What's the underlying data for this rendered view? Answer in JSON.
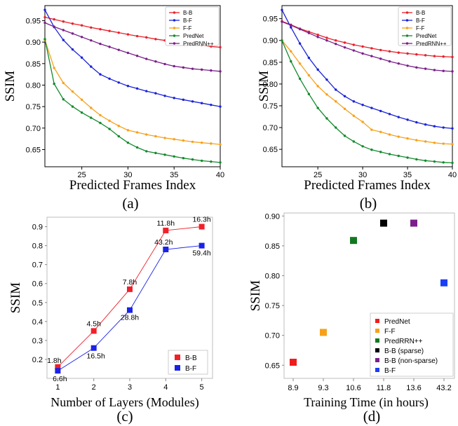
{
  "chart_data": [
    {
      "panel": "a",
      "type": "line",
      "caption": "(a)",
      "xlabel": "Predicted Frames Index",
      "ylabel": "SSIM",
      "xlim": [
        21,
        40
      ],
      "ylim": [
        0.61,
        0.985
      ],
      "xticks": [
        25,
        30,
        35,
        40
      ],
      "yticks": [
        0.65,
        0.7,
        0.75,
        0.8,
        0.85,
        0.9,
        0.95
      ],
      "legend_position": "top-right",
      "series": [
        {
          "name": "B-B",
          "color": "#e8202a",
          "x": [
            21,
            22,
            23,
            24,
            25,
            26,
            27,
            28,
            29,
            30,
            31,
            32,
            33,
            34,
            35,
            36,
            37,
            38,
            39,
            40
          ],
          "values": [
            0.958,
            0.953,
            0.948,
            0.943,
            0.939,
            0.934,
            0.93,
            0.926,
            0.922,
            0.918,
            0.914,
            0.911,
            0.907,
            0.904,
            0.901,
            0.898,
            0.895,
            0.893,
            0.89,
            0.888
          ]
        },
        {
          "name": "B-F",
          "color": "#1a22d8",
          "x": [
            21,
            22,
            23,
            24,
            25,
            26,
            27,
            28,
            29,
            30,
            31,
            32,
            33,
            34,
            35,
            36,
            37,
            38,
            39,
            40
          ],
          "values": [
            0.975,
            0.935,
            0.905,
            0.883,
            0.864,
            0.843,
            0.825,
            0.815,
            0.806,
            0.798,
            0.792,
            0.786,
            0.781,
            0.775,
            0.77,
            0.766,
            0.762,
            0.758,
            0.754,
            0.75
          ]
        },
        {
          "name": "F-F",
          "color": "#f7a11a",
          "x": [
            21,
            22,
            23,
            24,
            25,
            26,
            27,
            28,
            29,
            30,
            31,
            32,
            33,
            34,
            35,
            36,
            37,
            38,
            39,
            40
          ],
          "values": [
            0.905,
            0.84,
            0.805,
            0.785,
            0.766,
            0.747,
            0.73,
            0.717,
            0.705,
            0.695,
            0.69,
            0.685,
            0.681,
            0.677,
            0.674,
            0.671,
            0.668,
            0.666,
            0.664,
            0.662
          ]
        },
        {
          "name": "PredNet",
          "color": "#138a2c",
          "x": [
            21,
            22,
            23,
            24,
            25,
            26,
            27,
            28,
            29,
            30,
            31,
            32,
            33,
            34,
            35,
            36,
            37,
            38,
            39,
            40
          ],
          "values": [
            0.907,
            0.803,
            0.767,
            0.75,
            0.736,
            0.724,
            0.712,
            0.698,
            0.681,
            0.666,
            0.655,
            0.646,
            0.642,
            0.638,
            0.634,
            0.63,
            0.627,
            0.624,
            0.622,
            0.62
          ]
        },
        {
          "name": "PredRNN++",
          "color": "#7a1f8a",
          "x": [
            21,
            22,
            23,
            24,
            25,
            26,
            27,
            28,
            29,
            30,
            31,
            32,
            33,
            34,
            35,
            36,
            37,
            38,
            39,
            40
          ],
          "values": [
            0.945,
            0.936,
            0.928,
            0.92,
            0.912,
            0.904,
            0.896,
            0.889,
            0.882,
            0.875,
            0.868,
            0.861,
            0.855,
            0.849,
            0.844,
            0.841,
            0.838,
            0.836,
            0.834,
            0.832
          ]
        }
      ]
    },
    {
      "panel": "b",
      "type": "line",
      "caption": "(b)",
      "xlabel": "Predicted Frames Index",
      "ylabel": "SSIM",
      "xlim": [
        21,
        40
      ],
      "ylim": [
        0.61,
        0.98
      ],
      "xticks": [
        25,
        30,
        35,
        40
      ],
      "yticks": [
        0.65,
        0.7,
        0.75,
        0.8,
        0.85,
        0.9,
        0.95
      ],
      "legend_position": "top-right",
      "series": [
        {
          "name": "B-B",
          "color": "#e8202a",
          "x": [
            21,
            22,
            23,
            24,
            25,
            26,
            27,
            28,
            29,
            30,
            31,
            32,
            33,
            34,
            35,
            36,
            37,
            38,
            39,
            40
          ],
          "values": [
            0.944,
            0.936,
            0.927,
            0.92,
            0.913,
            0.906,
            0.9,
            0.895,
            0.89,
            0.886,
            0.882,
            0.878,
            0.875,
            0.872,
            0.87,
            0.868,
            0.866,
            0.864,
            0.863,
            0.862
          ]
        },
        {
          "name": "B-F",
          "color": "#1a22d8",
          "x": [
            21,
            22,
            23,
            24,
            25,
            26,
            27,
            28,
            29,
            30,
            31,
            32,
            33,
            34,
            35,
            36,
            37,
            38,
            39,
            40
          ],
          "values": [
            0.97,
            0.93,
            0.893,
            0.86,
            0.833,
            0.81,
            0.787,
            0.772,
            0.76,
            0.752,
            0.745,
            0.738,
            0.731,
            0.724,
            0.718,
            0.712,
            0.707,
            0.703,
            0.7,
            0.698
          ]
        },
        {
          "name": "F-F",
          "color": "#f7a11a",
          "x": [
            21,
            22,
            23,
            24,
            25,
            26,
            27,
            28,
            29,
            30,
            31,
            32,
            33,
            34,
            35,
            36,
            37,
            38,
            39,
            40
          ],
          "values": [
            0.9,
            0.875,
            0.847,
            0.82,
            0.795,
            0.776,
            0.76,
            0.743,
            0.727,
            0.713,
            0.695,
            0.69,
            0.684,
            0.679,
            0.675,
            0.671,
            0.668,
            0.665,
            0.663,
            0.662
          ]
        },
        {
          "name": "PredNet",
          "color": "#138a2c",
          "x": [
            21,
            22,
            23,
            24,
            25,
            26,
            27,
            28,
            29,
            30,
            31,
            32,
            33,
            34,
            35,
            36,
            37,
            38,
            39,
            40
          ],
          "values": [
            0.9,
            0.852,
            0.812,
            0.777,
            0.745,
            0.721,
            0.7,
            0.681,
            0.668,
            0.657,
            0.649,
            0.644,
            0.639,
            0.635,
            0.631,
            0.627,
            0.624,
            0.622,
            0.62,
            0.619
          ]
        },
        {
          "name": "PredRNN++",
          "color": "#7a1f8a",
          "x": [
            21,
            22,
            23,
            24,
            25,
            26,
            27,
            28,
            29,
            30,
            31,
            32,
            33,
            34,
            35,
            36,
            37,
            38,
            39,
            40
          ],
          "values": [
            0.943,
            0.935,
            0.926,
            0.917,
            0.908,
            0.9,
            0.892,
            0.884,
            0.877,
            0.87,
            0.864,
            0.858,
            0.852,
            0.847,
            0.842,
            0.838,
            0.835,
            0.832,
            0.83,
            0.829
          ]
        }
      ]
    },
    {
      "panel": "c",
      "type": "line",
      "caption": "(c)",
      "xlabel": "Number of  Layers (Modules)",
      "ylabel": "SSIM",
      "xlim": [
        0.7,
        5.3
      ],
      "ylim": [
        0.1,
        0.95
      ],
      "xticks": [
        1,
        2,
        3,
        4,
        5
      ],
      "yticks": [
        0.2,
        0.3,
        0.4,
        0.5,
        0.6,
        0.7,
        0.8,
        0.9
      ],
      "legend_position": "bottom-right",
      "series": [
        {
          "name": "B-B",
          "color": "#f0202a",
          "x": [
            1,
            2,
            3,
            4,
            5
          ],
          "values": [
            0.16,
            0.35,
            0.57,
            0.88,
            0.9
          ],
          "labels": [
            "1.8h",
            "4.5h",
            "7.8h",
            "11.8h",
            "16.3h"
          ]
        },
        {
          "name": "B-F",
          "color": "#1a22e8",
          "x": [
            1,
            2,
            3,
            4,
            5
          ],
          "values": [
            0.14,
            0.26,
            0.46,
            0.78,
            0.8
          ],
          "labels": [
            "6.6h",
            "16.5h",
            "28.8h",
            "43.2h",
            "59.4h"
          ]
        }
      ]
    },
    {
      "panel": "d",
      "type": "scatter",
      "caption": "(d)",
      "xlabel": "Training Time (in hours)",
      "ylabel": "SSIM",
      "ylim": [
        0.628,
        0.905
      ],
      "categories": [
        "8.9",
        "9.3",
        "10.6",
        "11.8",
        "13.6",
        "43.2"
      ],
      "yticks": [
        0.65,
        0.7,
        0.75,
        0.8,
        0.85,
        0.9
      ],
      "legend_position": "bottom-right",
      "series": [
        {
          "name": "PredNet",
          "color": "#f01c1c",
          "x": "8.9",
          "value": 0.655
        },
        {
          "name": "F-F",
          "color": "#f7a11a",
          "x": "9.3",
          "value": 0.705
        },
        {
          "name": "PredRRN++",
          "color": "#12781e",
          "x": "10.6",
          "value": 0.859
        },
        {
          "name": "B-B (sparse)",
          "color": "#000000",
          "x": "11.8",
          "value": 0.888
        },
        {
          "name": "B-B (non-sparse)",
          "color": "#7a1f8a",
          "x": "13.6",
          "value": 0.888
        },
        {
          "name": "B-F",
          "color": "#1a3ef5",
          "x": "43.2",
          "value": 0.788
        }
      ]
    }
  ]
}
